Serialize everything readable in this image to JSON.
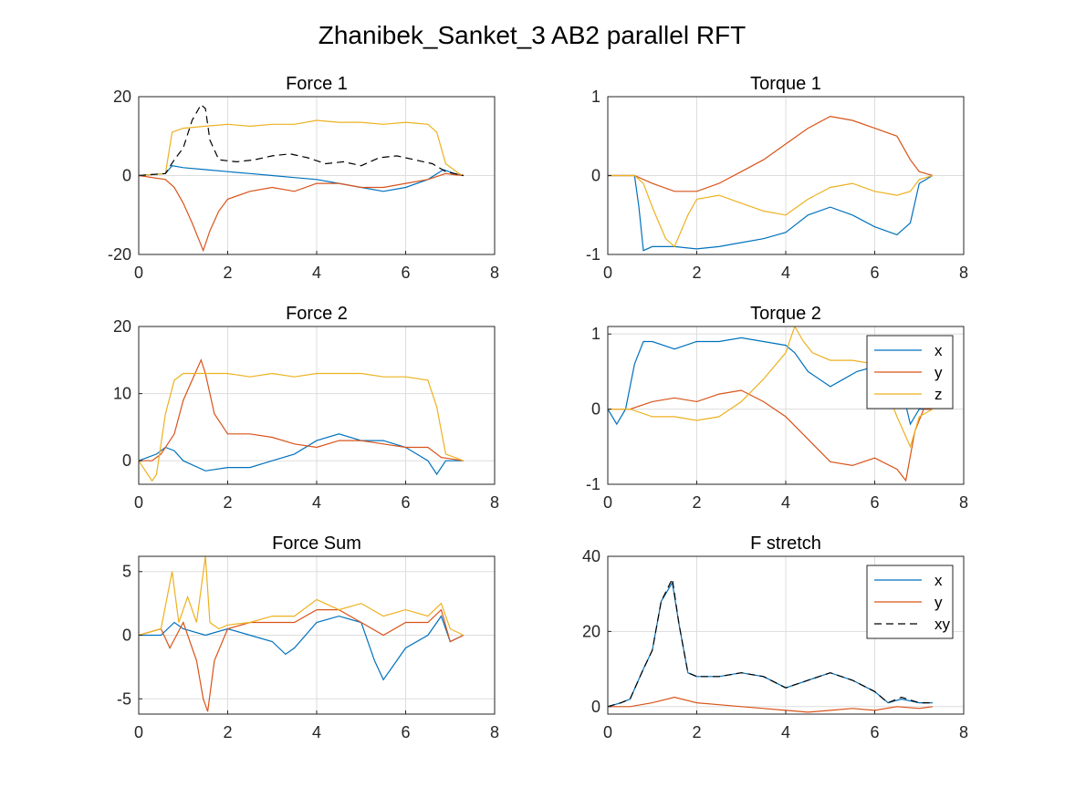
{
  "figure": {
    "title": "Zhanibek_Sanket_3 AB2 parallel RFT"
  },
  "colors": {
    "x": "#0072BD",
    "y": "#D95319",
    "z": "#EDB120",
    "xy": "#000000",
    "grid": "#dddddd",
    "axis": "#262626"
  },
  "chart_data": [
    {
      "id": "force1",
      "type": "line",
      "title": "Force 1",
      "xlim": [
        0,
        8
      ],
      "ylim": [
        -20,
        20
      ],
      "xticks": [
        "0",
        "2",
        "4",
        "6",
        "8"
      ],
      "yticks": [
        "-20",
        "0",
        "20"
      ],
      "ytick_values": [
        -20,
        0,
        20
      ],
      "grid": true,
      "series": [
        {
          "key": "x",
          "x": [
            0,
            0.6,
            0.75,
            1.0,
            1.5,
            2.0,
            2.5,
            3.0,
            3.5,
            4.0,
            4.5,
            5.0,
            5.5,
            6.0,
            6.5,
            6.85,
            7.1,
            7.3
          ],
          "y": [
            0,
            0.5,
            2.5,
            2,
            1.5,
            1,
            0.5,
            0,
            -0.5,
            -1,
            -2,
            -3,
            -4,
            -3,
            -1,
            1.5,
            0.5,
            0
          ]
        },
        {
          "key": "y",
          "x": [
            0,
            0.6,
            0.8,
            1.0,
            1.2,
            1.45,
            1.6,
            1.8,
            2.0,
            2.5,
            3.0,
            3.5,
            4.0,
            4.5,
            5.0,
            5.5,
            6.0,
            6.5,
            6.9,
            7.1,
            7.3
          ],
          "y": [
            0,
            -1,
            -3,
            -7,
            -12,
            -19,
            -14,
            -9,
            -6,
            -4,
            -3,
            -4,
            -2,
            -2,
            -3,
            -3,
            -2,
            -1,
            0.5,
            0.2,
            0
          ]
        },
        {
          "key": "z",
          "x": [
            0,
            0.6,
            0.75,
            1.0,
            1.5,
            2.0,
            2.5,
            3.0,
            3.5,
            4.0,
            4.5,
            5.0,
            5.5,
            6.0,
            6.5,
            6.7,
            6.9,
            7.2,
            7.3
          ],
          "y": [
            0,
            0.5,
            11,
            12,
            12.5,
            13,
            12.5,
            13,
            13,
            14,
            13.5,
            13.5,
            13,
            13.5,
            13,
            11,
            3,
            0.5,
            0
          ]
        },
        {
          "key": "xy",
          "dashed": true,
          "x": [
            0,
            0.6,
            0.8,
            1.0,
            1.2,
            1.4,
            1.5,
            1.6,
            1.8,
            2.2,
            2.6,
            3.0,
            3.4,
            3.8,
            4.2,
            4.6,
            5.0,
            5.4,
            5.8,
            6.2,
            6.6,
            6.9,
            7.3
          ],
          "y": [
            0,
            0.5,
            4,
            7,
            14,
            18,
            17,
            9,
            4,
            3.5,
            4,
            5,
            5.5,
            4.5,
            3,
            3.5,
            2.5,
            4.5,
            5,
            4,
            3,
            1,
            0
          ]
        }
      ]
    },
    {
      "id": "torque1",
      "type": "line",
      "title": "Torque 1",
      "xlim": [
        0,
        8
      ],
      "ylim": [
        -1,
        1
      ],
      "xticks": [
        "0",
        "2",
        "4",
        "6",
        "8"
      ],
      "yticks": [
        "-1",
        "0",
        "1"
      ],
      "ytick_values": [
        -1,
        0,
        1
      ],
      "grid": true,
      "series": [
        {
          "key": "x",
          "x": [
            0,
            0.6,
            0.7,
            0.8,
            1.0,
            1.5,
            2.0,
            2.5,
            3.0,
            3.5,
            4.0,
            4.5,
            5.0,
            5.5,
            6.0,
            6.5,
            6.8,
            7.0,
            7.3
          ],
          "y": [
            0,
            0,
            -0.4,
            -0.95,
            -0.9,
            -0.9,
            -0.93,
            -0.9,
            -0.85,
            -0.8,
            -0.72,
            -0.5,
            -0.4,
            -0.5,
            -0.65,
            -0.75,
            -0.6,
            -0.1,
            0
          ]
        },
        {
          "key": "y",
          "x": [
            0,
            0.6,
            1.0,
            1.5,
            2.0,
            2.5,
            3.0,
            3.5,
            4.0,
            4.5,
            5.0,
            5.5,
            6.0,
            6.5,
            6.8,
            7.0,
            7.3
          ],
          "y": [
            0,
            0,
            -0.1,
            -0.2,
            -0.2,
            -0.1,
            0.05,
            0.2,
            0.4,
            0.6,
            0.75,
            0.7,
            0.6,
            0.5,
            0.2,
            0.05,
            0
          ]
        },
        {
          "key": "z",
          "x": [
            0,
            0.6,
            0.8,
            1.0,
            1.3,
            1.5,
            1.8,
            2.0,
            2.5,
            3.0,
            3.5,
            4.0,
            4.5,
            5.0,
            5.5,
            6.0,
            6.5,
            6.8,
            7.0,
            7.3
          ],
          "y": [
            0,
            0,
            -0.1,
            -0.4,
            -0.8,
            -0.9,
            -0.5,
            -0.3,
            -0.25,
            -0.35,
            -0.45,
            -0.5,
            -0.3,
            -0.15,
            -0.1,
            -0.2,
            -0.25,
            -0.2,
            -0.05,
            0
          ]
        }
      ]
    },
    {
      "id": "force2",
      "type": "line",
      "title": "Force 2",
      "xlim": [
        0,
        8
      ],
      "ylim": [
        -3.5,
        20
      ],
      "xticks": [
        "0",
        "2",
        "4",
        "6",
        "8"
      ],
      "yticks": [
        "0",
        "10",
        "20"
      ],
      "ytick_values": [
        0,
        10,
        20
      ],
      "grid": true,
      "series": [
        {
          "key": "x",
          "x": [
            0,
            0.4,
            0.6,
            0.8,
            1.0,
            1.5,
            2.0,
            2.5,
            3.0,
            3.5,
            4.0,
            4.5,
            5.0,
            5.5,
            6.0,
            6.5,
            6.7,
            6.9,
            7.3
          ],
          "y": [
            0,
            1,
            2,
            1.5,
            0,
            -1.5,
            -1,
            -1,
            0,
            1,
            3,
            4,
            3,
            3,
            2,
            0,
            -2,
            0,
            0
          ]
        },
        {
          "key": "y",
          "x": [
            0,
            0.3,
            0.5,
            0.8,
            1.0,
            1.2,
            1.4,
            1.5,
            1.7,
            2.0,
            2.5,
            3.0,
            3.5,
            4.0,
            4.5,
            5.0,
            5.5,
            6.0,
            6.5,
            6.8,
            7.3
          ],
          "y": [
            0,
            0,
            1,
            4,
            9,
            12,
            15,
            13,
            7,
            4,
            4,
            3.5,
            2.5,
            2,
            3,
            3,
            2.5,
            2,
            2,
            0.5,
            0
          ]
        },
        {
          "key": "z",
          "x": [
            0,
            0.3,
            0.4,
            0.6,
            0.8,
            1.0,
            1.5,
            2.0,
            2.5,
            3.0,
            3.5,
            4.0,
            4.5,
            5.0,
            5.5,
            6.0,
            6.5,
            6.7,
            6.9,
            7.3
          ],
          "y": [
            0,
            -3,
            -2,
            7,
            12,
            13,
            13,
            13,
            12.5,
            13,
            12.5,
            13,
            13,
            13,
            12.5,
            12.5,
            12,
            8,
            1,
            0
          ]
        }
      ]
    },
    {
      "id": "torque2",
      "type": "line",
      "title": "Torque 2",
      "xlim": [
        0,
        8
      ],
      "ylim": [
        -1,
        1.1
      ],
      "xticks": [
        "0",
        "2",
        "4",
        "6",
        "8"
      ],
      "yticks": [
        "-1",
        "0",
        "1"
      ],
      "ytick_values": [
        -1,
        0,
        1
      ],
      "grid": true,
      "legend": {
        "position": "top-right",
        "entries": [
          "x",
          "y",
          "z"
        ]
      },
      "series": [
        {
          "key": "x",
          "x": [
            0,
            0.2,
            0.4,
            0.6,
            0.8,
            1.0,
            1.5,
            2.0,
            2.5,
            3.0,
            3.5,
            4.0,
            4.2,
            4.5,
            5.0,
            5.3,
            5.6,
            5.9,
            6.2,
            6.4,
            6.6,
            6.8,
            7.0,
            7.3
          ],
          "y": [
            0,
            -0.2,
            0,
            0.6,
            0.9,
            0.9,
            0.8,
            0.9,
            0.9,
            0.95,
            0.9,
            0.85,
            0.75,
            0.5,
            0.3,
            0.4,
            0.5,
            0.55,
            0.7,
            0.6,
            0.3,
            -0.2,
            0,
            0
          ]
        },
        {
          "key": "y",
          "x": [
            0,
            0.5,
            1.0,
            1.5,
            2.0,
            2.5,
            3.0,
            3.5,
            4.0,
            4.5,
            5.0,
            5.5,
            6.0,
            6.5,
            6.7,
            6.9,
            7.1,
            7.3
          ],
          "y": [
            0,
            0,
            0.1,
            0.15,
            0.1,
            0.2,
            0.25,
            0.1,
            -0.1,
            -0.4,
            -0.7,
            -0.75,
            -0.65,
            -0.8,
            -0.95,
            -0.3,
            0,
            0
          ]
        },
        {
          "key": "z",
          "x": [
            0,
            0.5,
            1.0,
            1.5,
            2.0,
            2.5,
            3.0,
            3.5,
            4.0,
            4.2,
            4.4,
            4.6,
            5.0,
            5.5,
            6.0,
            6.3,
            6.5,
            6.8,
            7.0,
            7.3
          ],
          "y": [
            0,
            0,
            -0.1,
            -0.1,
            -0.15,
            -0.1,
            0.1,
            0.4,
            0.75,
            1.1,
            0.9,
            0.75,
            0.65,
            0.65,
            0.6,
            0.2,
            -0.1,
            -0.5,
            -0.1,
            0
          ]
        }
      ]
    },
    {
      "id": "forcesum",
      "type": "line",
      "title": "Force Sum",
      "xlim": [
        0,
        8
      ],
      "ylim": [
        -6.2,
        6.2
      ],
      "xticks": [
        "0",
        "2",
        "4",
        "6",
        "8"
      ],
      "yticks": [
        "-5",
        "0",
        "5"
      ],
      "ytick_values": [
        -5,
        0,
        5
      ],
      "grid": true,
      "series": [
        {
          "key": "x",
          "x": [
            0,
            0.5,
            0.8,
            1.0,
            1.5,
            2.0,
            2.5,
            3.0,
            3.3,
            3.5,
            4.0,
            4.5,
            5.0,
            5.3,
            5.5,
            5.8,
            6.0,
            6.5,
            6.8,
            7.0,
            7.3
          ],
          "y": [
            0,
            0,
            1,
            0.5,
            0,
            0.5,
            0,
            -0.5,
            -1.5,
            -1,
            1,
            1.5,
            1,
            -2,
            -3.5,
            -2,
            -1,
            0,
            1.5,
            -0.5,
            0
          ]
        },
        {
          "key": "y",
          "x": [
            0,
            0.5,
            0.7,
            1.0,
            1.3,
            1.45,
            1.55,
            1.7,
            2.0,
            2.5,
            3.0,
            3.5,
            4.0,
            4.5,
            5.0,
            5.5,
            6.0,
            6.5,
            6.8,
            7.0,
            7.3
          ],
          "y": [
            0,
            0.5,
            -1,
            1,
            -2,
            -5,
            -6,
            -2,
            0.5,
            1,
            1,
            1,
            2,
            2,
            1,
            0,
            1,
            1,
            2,
            -0.5,
            0
          ]
        },
        {
          "key": "z",
          "x": [
            0,
            0.5,
            0.75,
            0.9,
            1.1,
            1.3,
            1.5,
            1.6,
            1.8,
            2.0,
            2.5,
            3.0,
            3.5,
            4.0,
            4.5,
            5.0,
            5.5,
            6.0,
            6.5,
            6.8,
            7.0,
            7.3
          ],
          "y": [
            0,
            0.5,
            5,
            1,
            3,
            1,
            6.2,
            1,
            0.5,
            0.8,
            1,
            1.5,
            1.5,
            2.8,
            2,
            2.5,
            1.5,
            2,
            1.5,
            2.5,
            0.5,
            0
          ]
        }
      ]
    },
    {
      "id": "fstretch",
      "type": "line",
      "title": "F stretch",
      "xlim": [
        0,
        8
      ],
      "ylim": [
        -2,
        40
      ],
      "xticks": [
        "0",
        "2",
        "4",
        "6",
        "8"
      ],
      "yticks": [
        "0",
        "20",
        "40"
      ],
      "ytick_values": [
        0,
        20,
        40
      ],
      "grid": true,
      "legend": {
        "position": "top-right",
        "entries": [
          "x",
          "y",
          "xy"
        ]
      },
      "series": [
        {
          "key": "x",
          "x": [
            0,
            0.3,
            0.5,
            0.8,
            1.0,
            1.2,
            1.45,
            1.6,
            1.8,
            2.0,
            2.5,
            3.0,
            3.5,
            4.0,
            4.5,
            5.0,
            5.5,
            6.0,
            6.3,
            6.6,
            7.0,
            7.3
          ],
          "y": [
            0,
            1,
            2,
            10,
            15,
            28,
            33,
            22,
            9,
            8,
            8,
            9,
            8,
            5,
            7,
            9,
            7,
            4,
            1,
            2,
            1,
            1
          ]
        },
        {
          "key": "y",
          "x": [
            0,
            0.5,
            1.0,
            1.5,
            2.0,
            2.5,
            3.0,
            3.5,
            4.0,
            4.5,
            5.0,
            5.5,
            6.0,
            6.5,
            7.0,
            7.3
          ],
          "y": [
            0,
            0,
            1,
            2.5,
            1,
            0.5,
            0,
            -0.5,
            -1,
            -1.5,
            -1,
            -0.5,
            -1,
            0,
            -0.5,
            0
          ]
        },
        {
          "key": "xy",
          "dashed": true,
          "x": [
            0,
            0.3,
            0.5,
            0.8,
            1.0,
            1.2,
            1.45,
            1.6,
            1.8,
            2.0,
            2.5,
            3.0,
            3.5,
            4.0,
            4.5,
            5.0,
            5.5,
            6.0,
            6.3,
            6.6,
            7.0,
            7.3
          ],
          "y": [
            0,
            1,
            2,
            10,
            15,
            28,
            34,
            22,
            9,
            8,
            8,
            9,
            8,
            5,
            7,
            9,
            7,
            4,
            1,
            2.5,
            1,
            1
          ]
        }
      ]
    }
  ]
}
